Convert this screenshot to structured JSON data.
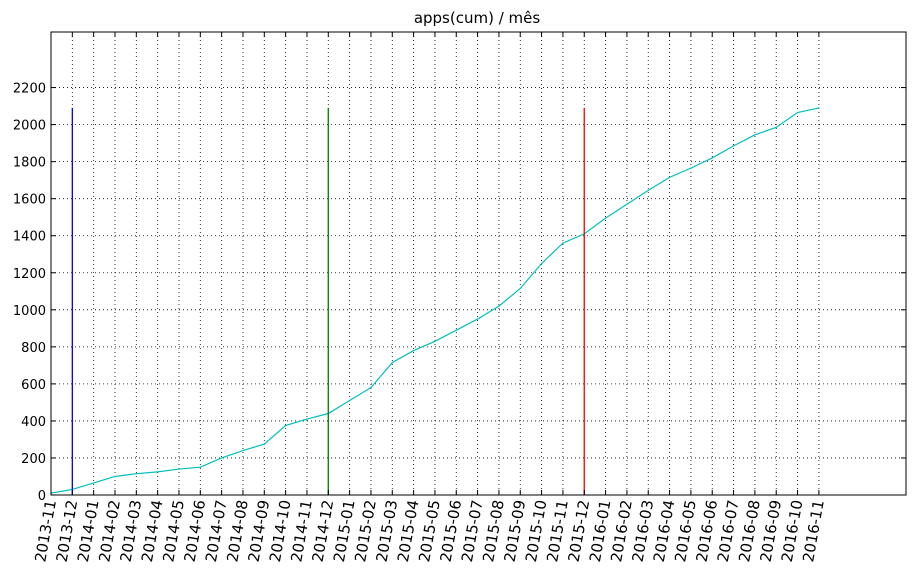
{
  "chart_data": {
    "type": "line",
    "title": "apps(cum) / mês",
    "xlabel": "",
    "ylabel": "",
    "categories": [
      "2013-11",
      "2013-12",
      "2014-01",
      "2014-02",
      "2014-03",
      "2014-04",
      "2014-05",
      "2014-06",
      "2014-07",
      "2014-08",
      "2014-09",
      "2014-10",
      "2014-11",
      "2014-12",
      "2015-01",
      "2015-02",
      "2015-03",
      "2015-04",
      "2015-05",
      "2015-06",
      "2015-07",
      "2015-08",
      "2015-09",
      "2015-10",
      "2015-11",
      "2015-12",
      "2016-01",
      "2016-02",
      "2016-03",
      "2016-04",
      "2016-05",
      "2016-06",
      "2016-07",
      "2016-08",
      "2016-09",
      "2016-10",
      "2016-11"
    ],
    "series": [
      {
        "values": [
          10,
          30,
          65,
          100,
          115,
          125,
          140,
          150,
          200,
          240,
          275,
          375,
          410,
          440,
          510,
          580,
          715,
          780,
          830,
          890,
          950,
          1020,
          1115,
          1250,
          1360,
          1410,
          1495,
          1570,
          1645,
          1715,
          1765,
          1820,
          1885,
          1945,
          1985,
          2065,
          2090
        ],
        "color": "#00BFBF"
      }
    ],
    "markers": [
      {
        "at": "2013-12",
        "ymin": 0,
        "ymax": 2090,
        "color": "#0000FF"
      },
      {
        "at": "2014-12",
        "ymin": 0,
        "ymax": 2090,
        "color": "#008000"
      },
      {
        "at": "2015-12",
        "ymin": 0,
        "ymax": 2090,
        "color": "#FF0000"
      }
    ],
    "yticks": [
      0,
      200,
      400,
      600,
      800,
      1000,
      1200,
      1400,
      1600,
      1800,
      2000,
      2200
    ],
    "ylim": [
      0,
      2500
    ],
    "x_tick_rotation_deg": 80,
    "grid": true,
    "grid_style": "dotted",
    "legend": "none"
  }
}
